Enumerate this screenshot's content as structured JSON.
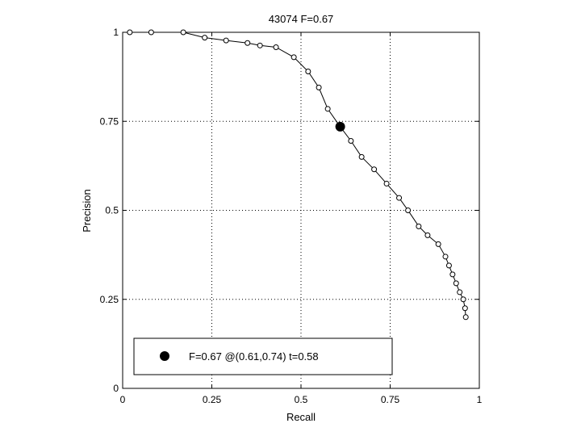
{
  "chart_data": {
    "type": "line",
    "title": "43074 F=0.67",
    "xlabel": "Recall",
    "ylabel": "Precision",
    "xlim": [
      0,
      1
    ],
    "ylim": [
      0,
      1
    ],
    "xticks": [
      0,
      0.25,
      0.5,
      0.75,
      1
    ],
    "xtick_labels": [
      "0",
      "0.25",
      "0.5",
      "0.75",
      "1"
    ],
    "yticks": [
      0,
      0.25,
      0.5,
      0.75,
      1
    ],
    "ytick_labels": [
      "0",
      "0.25",
      "0.5",
      "0.75",
      "1"
    ],
    "grid": true,
    "legend_position": "bottom-left",
    "series": [
      {
        "marker": "open-circle",
        "color": "#000000",
        "points": [
          [
            0.02,
            1.0
          ],
          [
            0.08,
            1.0
          ],
          [
            0.17,
            1.0
          ],
          [
            0.23,
            0.985
          ],
          [
            0.29,
            0.977
          ],
          [
            0.35,
            0.97
          ],
          [
            0.385,
            0.963
          ],
          [
            0.43,
            0.958
          ],
          [
            0.48,
            0.93
          ],
          [
            0.52,
            0.89
          ],
          [
            0.55,
            0.845
          ],
          [
            0.575,
            0.785
          ],
          [
            0.61,
            0.735
          ],
          [
            0.64,
            0.695
          ],
          [
            0.67,
            0.65
          ],
          [
            0.705,
            0.615
          ],
          [
            0.74,
            0.575
          ],
          [
            0.775,
            0.535
          ],
          [
            0.8,
            0.5
          ],
          [
            0.83,
            0.455
          ],
          [
            0.855,
            0.43
          ],
          [
            0.885,
            0.405
          ],
          [
            0.905,
            0.37
          ],
          [
            0.915,
            0.345
          ],
          [
            0.925,
            0.32
          ],
          [
            0.935,
            0.295
          ],
          [
            0.945,
            0.27
          ],
          [
            0.955,
            0.25
          ],
          [
            0.96,
            0.225
          ],
          [
            0.962,
            0.2
          ]
        ]
      }
    ],
    "highlight_point": {
      "x": 0.61,
      "y": 0.735,
      "marker": "filled-circle",
      "color": "#000000"
    },
    "legend": {
      "marker": "filled-circle",
      "text": "F=0.67 @(0.61,0.74) t=0.58"
    }
  }
}
